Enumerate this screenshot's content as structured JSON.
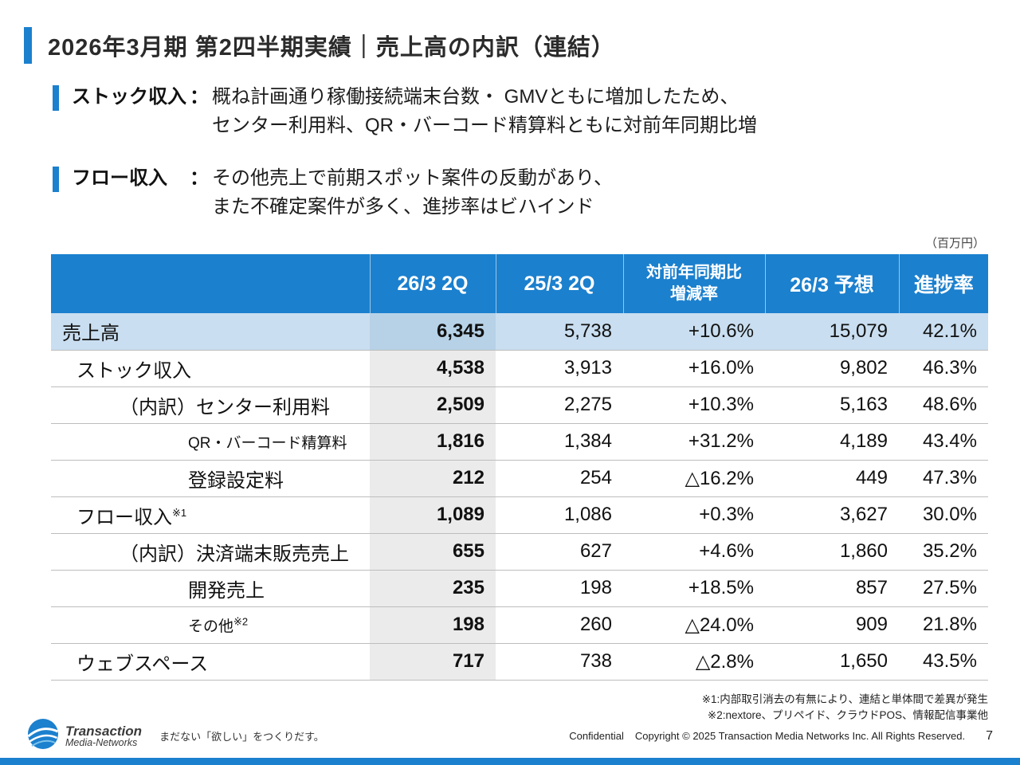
{
  "colors": {
    "accent_blue": "#1B80CE",
    "highlight_row": "#C9DEF0"
  },
  "slide": {
    "title": "2026年3月期 第2四半期実績｜売上高の内訳（連結）"
  },
  "bullets": [
    {
      "label": "ストック収入",
      "separator": "：",
      "lines": [
        "概ね計画通り稼働接続端末台数・ GMVともに増加したため、",
        "センター利用料、QR・バーコード精算料ともに対前年同期比増"
      ]
    },
    {
      "label": "フロー収入",
      "separator": "：",
      "lines": [
        "その他売上で前期スポット案件の反動があり、",
        "また不確定案件が多く、進捗率はビハインド"
      ]
    }
  ],
  "table": {
    "unit_note": "（百万円）",
    "headers": [
      {
        "label": "26/3 2Q"
      },
      {
        "label": "25/3 2Q"
      },
      {
        "label": "対前年同期比",
        "label2": "増減率"
      },
      {
        "label": "26/3 予想"
      },
      {
        "label": "進捗率"
      }
    ],
    "rows": [
      {
        "label": "売上高",
        "sup": "",
        "indent": 0,
        "small": false,
        "highlight": true,
        "values": [
          "6,345",
          "5,738",
          "+10.6%",
          "15,079",
          "42.1%"
        ]
      },
      {
        "label": "ストック収入",
        "sup": "",
        "indent": 1,
        "small": false,
        "highlight": false,
        "values": [
          "4,538",
          "3,913",
          "+16.0%",
          "9,802",
          "46.3%"
        ]
      },
      {
        "label": "（内訳）センター利用料",
        "sup": "",
        "indent": 2,
        "small": false,
        "highlight": false,
        "values": [
          "2,509",
          "2,275",
          "+10.3%",
          "5,163",
          "48.6%"
        ]
      },
      {
        "label": "QR・バーコード精算料",
        "sup": "",
        "indent": 3,
        "small": true,
        "highlight": false,
        "values": [
          "1,816",
          "1,384",
          "+31.2%",
          "4,189",
          "43.4%"
        ]
      },
      {
        "label": "登録設定料",
        "sup": "",
        "indent": 3,
        "small": false,
        "highlight": false,
        "values": [
          "212",
          "254",
          "△16.2%",
          "449",
          "47.3%"
        ]
      },
      {
        "label": "フロー収入",
        "sup": "※1",
        "indent": 1,
        "small": false,
        "highlight": false,
        "values": [
          "1,089",
          "1,086",
          "+0.3%",
          "3,627",
          "30.0%"
        ]
      },
      {
        "label": "（内訳）決済端末販売売上",
        "sup": "",
        "indent": 2,
        "small": false,
        "highlight": false,
        "values": [
          "655",
          "627",
          "+4.6%",
          "1,860",
          "35.2%"
        ]
      },
      {
        "label": "開発売上",
        "sup": "",
        "indent": 3,
        "small": false,
        "highlight": false,
        "values": [
          "235",
          "198",
          "+18.5%",
          "857",
          "27.5%"
        ]
      },
      {
        "label": "その他",
        "sup": "※2",
        "indent": 3,
        "small": true,
        "highlight": false,
        "values": [
          "198",
          "260",
          "△24.0%",
          "909",
          "21.8%"
        ]
      },
      {
        "label": "ウェブスペース",
        "sup": "",
        "indent": 1,
        "small": false,
        "highlight": false,
        "values": [
          "717",
          "738",
          "△2.8%",
          "1,650",
          "43.5%"
        ]
      }
    ]
  },
  "footnotes": [
    "※1:内部取引消去の有無により、連結と単体間で差異が発生",
    "※2:nextore、プリペイド、クラウドPOS、情報配信事業他"
  ],
  "footer": {
    "logo_line1": "Transaction",
    "logo_line2": "Media-Networks",
    "tagline": "まだない「欲しい」をつくりだす。",
    "confidential": "Confidential",
    "copyright": "Copyright © 2025 Transaction Media Networks Inc. All Rights Reserved.",
    "page": "7"
  }
}
